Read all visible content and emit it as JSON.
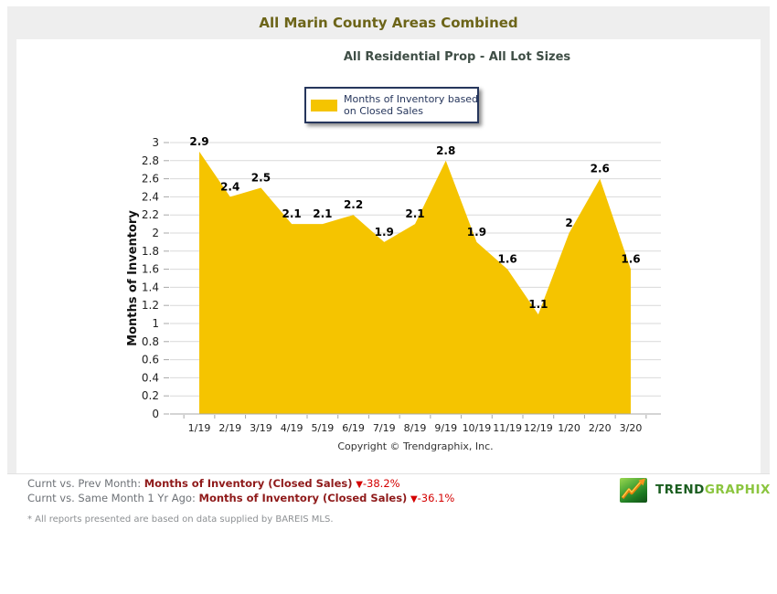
{
  "header": {
    "title": "All Marin County Areas Combined"
  },
  "panel": {
    "subtitle": "All Residential Prop - All Lot Sizes"
  },
  "legend": {
    "line1": "Months of Inventory based",
    "line2": "on Closed Sales"
  },
  "chart_data": {
    "type": "area",
    "title": "All Marin County Areas Combined",
    "subtitle": "All Residential Prop - All Lot Sizes",
    "series_name": "Months of Inventory based on Closed Sales",
    "categories": [
      "1/19",
      "2/19",
      "3/19",
      "4/19",
      "5/19",
      "6/19",
      "7/19",
      "8/19",
      "9/19",
      "10/19",
      "11/19",
      "12/19",
      "1/20",
      "2/20",
      "3/20"
    ],
    "values": [
      2.9,
      2.4,
      2.5,
      2.1,
      2.1,
      2.2,
      1.9,
      2.1,
      2.8,
      1.9,
      1.6,
      1.1,
      2,
      2.6,
      1.6
    ],
    "ylabel": "Months of Inventory",
    "xlabel": "",
    "ylim": [
      0,
      3
    ],
    "ytick_step": 0.2,
    "grid": true,
    "legend_position": "top",
    "area_color": "#f5c400",
    "xaxis_note": "Copyright © Trendgraphix, Inc."
  },
  "footer": {
    "down_arrow": "▼",
    "line1_prefix": "Curnt vs. Prev Month: ",
    "line1_metric": "Months of Inventory (Closed Sales)",
    "line1_change": "-38.2%",
    "line2_prefix": "Curnt vs. Same Month 1 Yr Ago: ",
    "line2_metric": "Months of Inventory (Closed Sales)",
    "line2_change": "-36.1%",
    "disclaimer": "* All reports presented are based on data supplied by BAREIS MLS."
  },
  "logo": {
    "trend": "TREND",
    "graphix": "GRAPHIX"
  },
  "colors": {
    "area": "#f5c400",
    "negative_change": "#d40000",
    "metric_label": "#8f1a1a",
    "title": "#6c6418",
    "legend_border": "#26365c",
    "logo_dark_green": "#1b5e20",
    "logo_light_green": "#8bc53f"
  }
}
